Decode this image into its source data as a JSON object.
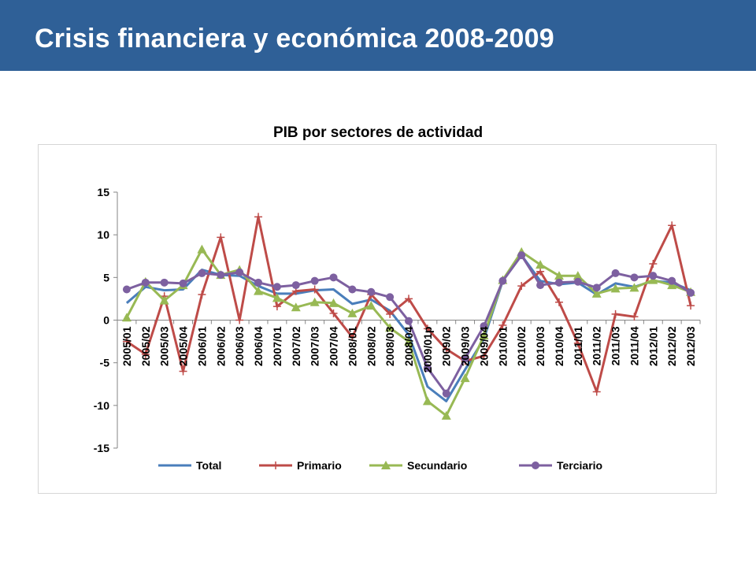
{
  "header": {
    "title": "Crisis financiera y económica 2008-2009",
    "background": "#2f6097"
  },
  "chart_data": {
    "type": "line",
    "title": "PIB por sectores de actividad",
    "xlabel": "",
    "ylabel": "",
    "ylim": [
      -15,
      15
    ],
    "yticks": [
      -15,
      -10,
      -5,
      0,
      5,
      10,
      15
    ],
    "grid": false,
    "legend_position": "bottom",
    "categories": [
      "2005/01",
      "2005/02",
      "2005/03",
      "2005/04",
      "2006/01",
      "2006/02",
      "2006/03",
      "2006/04",
      "2007/01",
      "2007/02",
      "2007/03",
      "2007/04",
      "2008/01",
      "2008/02",
      "2008/03",
      "2008/04",
      "2009/01p",
      "2009/02",
      "2009/03",
      "2009/04",
      "2010/01",
      "2010/02",
      "2010/03",
      "2010/04",
      "2011/01",
      "2011/02",
      "2011/03",
      "2011/04",
      "2012/01",
      "2012/02",
      "2012/03"
    ],
    "series": [
      {
        "name": "Total",
        "color": "#4a7ebb",
        "marker": "none",
        "values": [
          2.0,
          3.9,
          3.5,
          3.6,
          5.9,
          5.3,
          5.2,
          4.0,
          3.1,
          3.1,
          3.5,
          3.6,
          1.9,
          2.4,
          1.1,
          -1.7,
          -7.8,
          -9.5,
          -5.8,
          -2.2,
          4.6,
          7.6,
          4.6,
          4.2,
          4.4,
          3.0,
          4.3,
          3.9,
          4.6,
          4.4,
          3.5
        ]
      },
      {
        "name": "Primario",
        "color": "#be4b48",
        "marker": "plus",
        "values": [
          -2.5,
          -4.0,
          2.8,
          -6.0,
          3.0,
          9.7,
          0.0,
          12.1,
          1.6,
          3.4,
          3.6,
          0.8,
          -2.0,
          3.0,
          0.7,
          2.5,
          -1.0,
          -3.4,
          -4.8,
          -4.2,
          -0.6,
          4.0,
          5.7,
          2.1,
          -2.7,
          -8.4,
          0.7,
          0.4,
          6.6,
          11.1,
          1.7
        ]
      },
      {
        "name": "Secundario",
        "color": "#98b954",
        "marker": "triangle",
        "values": [
          0.3,
          4.5,
          2.3,
          4.1,
          8.3,
          5.3,
          5.9,
          3.4,
          2.6,
          1.5,
          2.1,
          2.0,
          0.8,
          1.7,
          -0.9,
          -2.5,
          -9.5,
          -11.2,
          -6.8,
          -1.8,
          4.7,
          8.0,
          6.5,
          5.2,
          5.2,
          3.1,
          3.7,
          3.8,
          4.7,
          4.1,
          3.3
        ]
      },
      {
        "name": "Terciario",
        "color": "#7d60a0",
        "marker": "circle",
        "values": [
          3.6,
          4.4,
          4.4,
          4.3,
          5.5,
          5.3,
          5.6,
          4.4,
          3.9,
          4.1,
          4.6,
          5.0,
          3.6,
          3.3,
          2.7,
          -0.1,
          -5.6,
          -8.6,
          -4.5,
          -0.7,
          4.6,
          7.6,
          4.1,
          4.4,
          4.5,
          3.8,
          5.5,
          5.0,
          5.2,
          4.6,
          3.2
        ]
      }
    ]
  }
}
